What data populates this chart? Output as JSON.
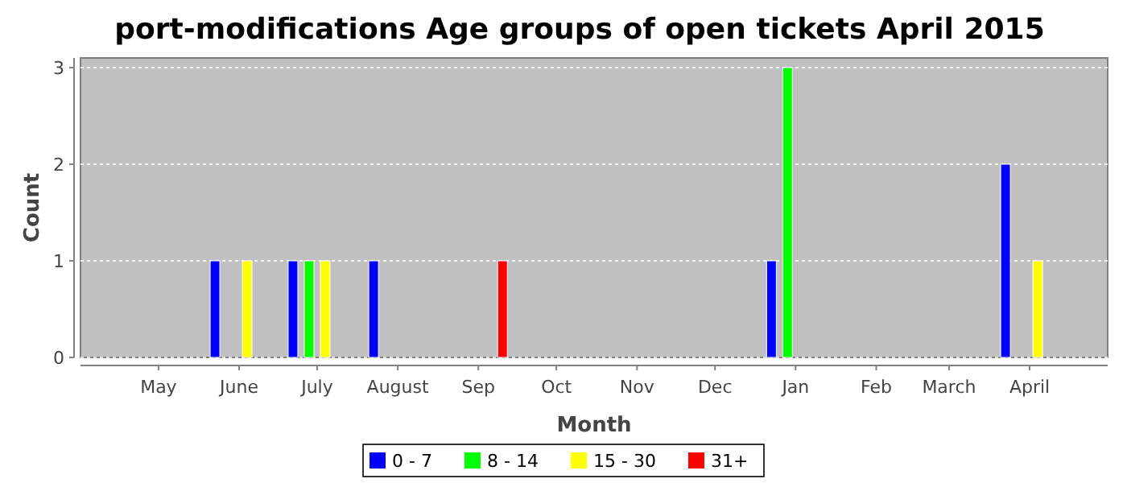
{
  "chart_data": {
    "type": "bar",
    "title": "port-modifications Age groups of open tickets April 2015",
    "xlabel": "Month",
    "ylabel": "Count",
    "x": [
      "2014-06",
      "2014-07",
      "2014-08",
      "2014-09",
      "2015-01",
      "2015-04"
    ],
    "xlim": [
      "2014-04-01",
      "2015-05-01"
    ],
    "xticks": [
      {
        "value": "2014-05",
        "label": "May"
      },
      {
        "value": "2014-06",
        "label": "June"
      },
      {
        "value": "2014-07",
        "label": "July"
      },
      {
        "value": "2014-08",
        "label": "August"
      },
      {
        "value": "2014-09",
        "label": "Sep"
      },
      {
        "value": "2014-10",
        "label": "Oct"
      },
      {
        "value": "2014-11",
        "label": "Nov"
      },
      {
        "value": "2014-12",
        "label": "Dec"
      },
      {
        "value": "2015-01",
        "label": "Jan"
      },
      {
        "value": "2015-02",
        "label": "Feb"
      },
      {
        "value": "2015-03",
        "label": "March"
      },
      {
        "value": "2015-04",
        "label": "April"
      }
    ],
    "ylim": [
      0,
      3.1
    ],
    "yticks": [
      0,
      1,
      2,
      3
    ],
    "grid": "y",
    "legend": "bottom",
    "series": [
      {
        "name": "0 - 7",
        "color": "#0000ff",
        "values": [
          1,
          1,
          1,
          null,
          1,
          2
        ]
      },
      {
        "name": "8 - 14",
        "color": "#00ff00",
        "values": [
          null,
          1,
          null,
          null,
          3,
          null
        ]
      },
      {
        "name": "15 - 30",
        "color": "#ffff00",
        "values": [
          1,
          1,
          null,
          null,
          null,
          1
        ]
      },
      {
        "name": "31+",
        "color": "#ff0000",
        "values": [
          null,
          null,
          null,
          1,
          null,
          null
        ]
      }
    ]
  }
}
